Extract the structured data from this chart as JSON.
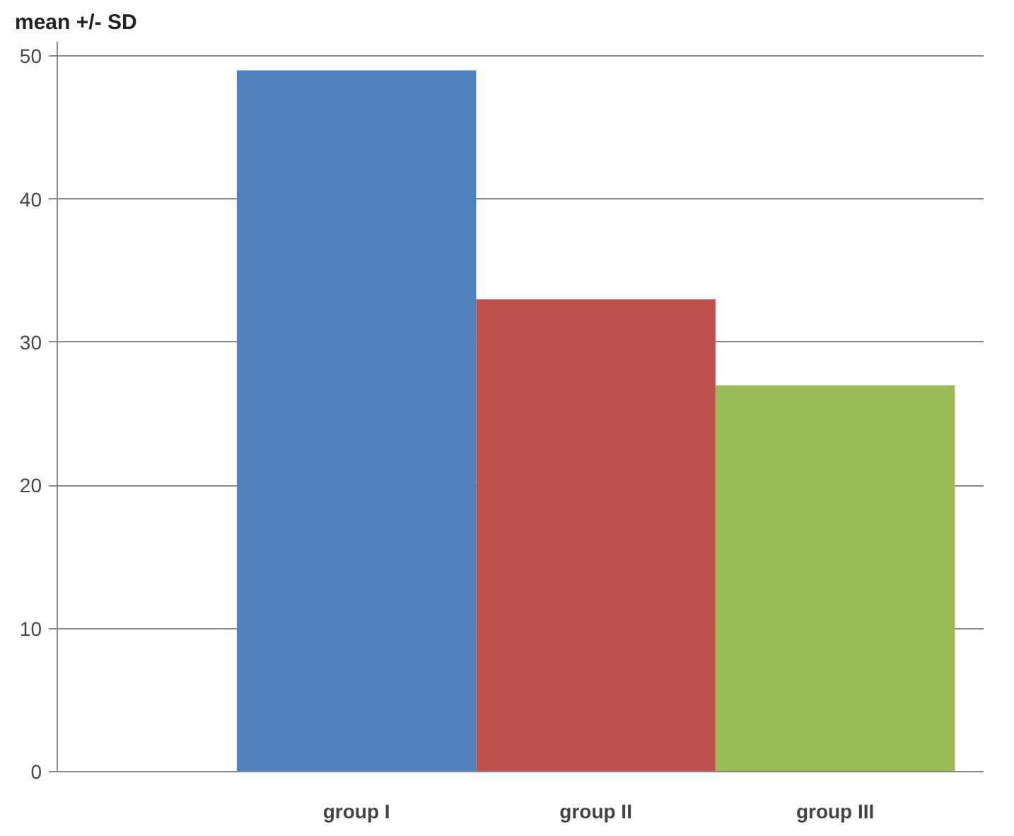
{
  "chart_data": {
    "type": "bar",
    "ylabel": "mean +/- SD",
    "categories": [
      "group I",
      "group II",
      "group III"
    ],
    "values": [
      49,
      33,
      27
    ],
    "colors": [
      "#4f81bd",
      "#c0504d",
      "#9bbb59"
    ],
    "ylim": [
      0,
      50
    ],
    "yticks": [
      0,
      10,
      20,
      30,
      40,
      50
    ],
    "grid": "y"
  }
}
